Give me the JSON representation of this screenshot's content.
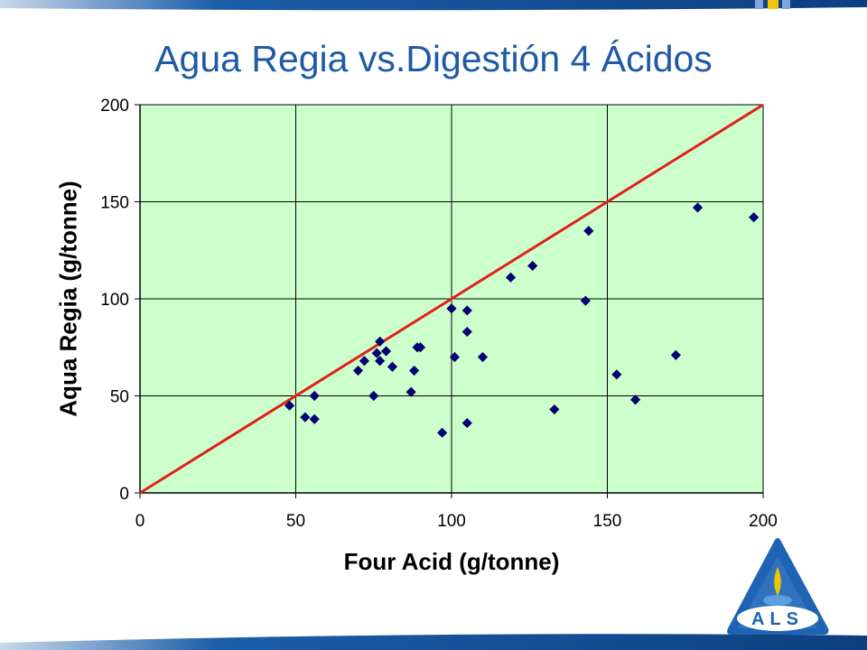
{
  "slide": {
    "title": "Agua Regia vs.Digestión 4 Ácidos",
    "logo_text": "ALS",
    "colors": {
      "title": "#1f5aa5",
      "band": "#1b5ea8",
      "plot_bg": "#ccffcc",
      "marker": "#000080",
      "identity_line": "#e0201b",
      "logo_blue": "#1f63b3",
      "logo_yellow": "#f2c500"
    }
  },
  "chart_data": {
    "type": "scatter",
    "xlabel": "Four Acid (g/tonne)",
    "ylabel": "Aqua Regia (g/tonne)",
    "xlim": [
      0,
      200
    ],
    "ylim": [
      0,
      200
    ],
    "xticks": [
      "0",
      "50",
      "100",
      "150",
      "200"
    ],
    "yticks": [
      "0",
      "50",
      "100",
      "150",
      "200"
    ],
    "grid": true,
    "legend": "none",
    "reference_line": {
      "from": [
        0,
        0
      ],
      "to": [
        200,
        200
      ]
    },
    "points": [
      [
        48,
        45
      ],
      [
        53,
        39
      ],
      [
        56,
        38
      ],
      [
        56,
        50
      ],
      [
        70,
        63
      ],
      [
        72,
        68
      ],
      [
        75,
        50
      ],
      [
        76,
        72
      ],
      [
        77,
        78
      ],
      [
        77,
        68
      ],
      [
        79,
        73
      ],
      [
        81,
        65
      ],
      [
        87,
        52
      ],
      [
        88,
        63
      ],
      [
        89,
        75
      ],
      [
        90,
        75
      ],
      [
        97,
        31
      ],
      [
        100,
        95
      ],
      [
        101,
        70
      ],
      [
        105,
        94
      ],
      [
        105,
        83
      ],
      [
        105,
        36
      ],
      [
        110,
        70
      ],
      [
        119,
        111
      ],
      [
        126,
        117
      ],
      [
        133,
        43
      ],
      [
        143,
        99
      ],
      [
        144,
        135
      ],
      [
        153,
        61
      ],
      [
        159,
        48
      ],
      [
        172,
        71
      ],
      [
        179,
        147
      ],
      [
        197,
        142
      ]
    ]
  }
}
